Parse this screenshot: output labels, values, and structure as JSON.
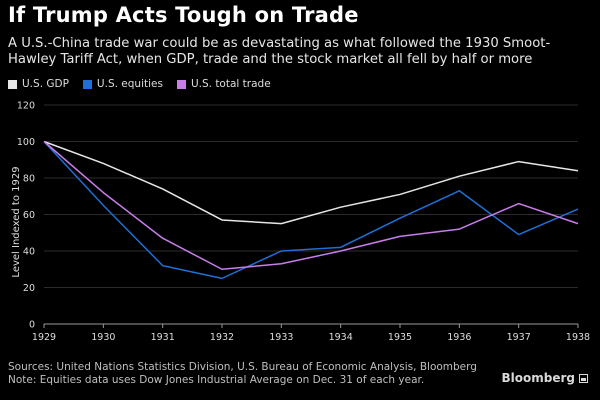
{
  "header": {
    "title": "If Trump Acts Tough on Trade",
    "subtitle": "A U.S.-China trade war could be as devastating as what followed the 1930 Smoot-Hawley Tariff Act, when GDP, trade and the stock market all fell by half or more"
  },
  "footer": {
    "sources": "Sources: United Nations Statistics Division, U.S. Bureau of Economic Analysis, Bloomberg",
    "note": "Note: Equities data uses Dow Jones Industrial Average on Dec. 31 of each year.",
    "brand": "Bloomberg"
  },
  "chart_data": {
    "type": "line",
    "title": "If Trump Acts Tough on Trade",
    "xlabel": "",
    "ylabel": "Level Indexed to 1929",
    "x": [
      "1929",
      "1930",
      "1931",
      "1932",
      "1933",
      "1934",
      "1935",
      "1936",
      "1937",
      "1938"
    ],
    "yticks": [
      0,
      20,
      40,
      60,
      80,
      100,
      120
    ],
    "ylim": [
      0,
      120
    ],
    "grid": true,
    "legend_position": "top-left",
    "series": [
      {
        "name": "U.S. GDP",
        "color": "#e6e6e6",
        "values": [
          100,
          88,
          74,
          57,
          55,
          64,
          71,
          81,
          89,
          84
        ]
      },
      {
        "name": "U.S. equities",
        "color": "#1f6fd6",
        "values": [
          100,
          65,
          32,
          25,
          40,
          42,
          58,
          73,
          49,
          63
        ]
      },
      {
        "name": "U.S. total trade",
        "color": "#c77dea",
        "values": [
          100,
          72,
          47,
          30,
          33,
          40,
          48,
          52,
          66,
          55
        ]
      }
    ]
  }
}
